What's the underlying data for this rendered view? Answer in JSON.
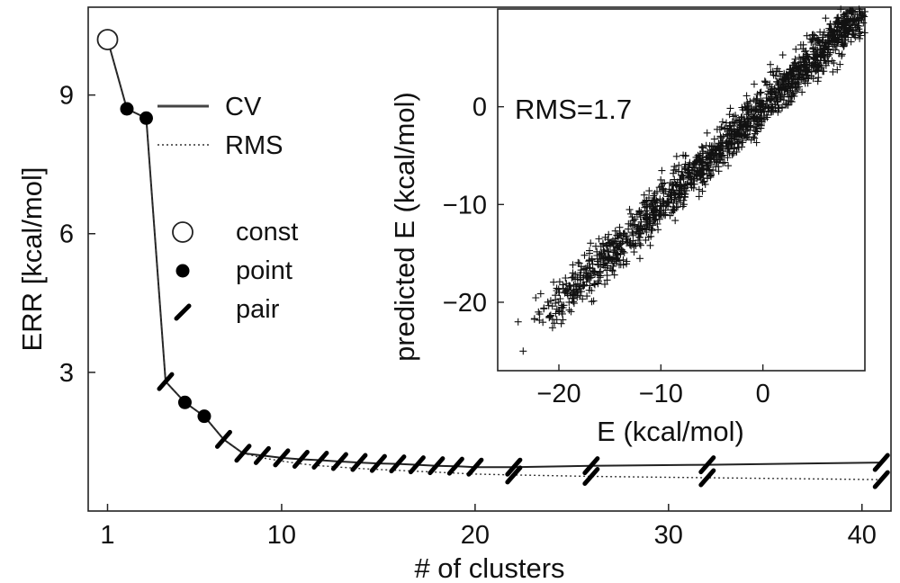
{
  "chart_data": [
    {
      "type": "line",
      "xlabel": "# of clusters",
      "ylabel": "ERR [kcal/mol]",
      "xlim": [
        0,
        41.5
      ],
      "ylim": [
        0,
        10.9
      ],
      "xticks": [
        "1",
        "10",
        "20",
        "30",
        "40"
      ],
      "yticks": [
        "3",
        "6",
        "9"
      ],
      "legend": {
        "lines": [
          {
            "label": "CV",
            "style": "solid"
          },
          {
            "label": "RMS",
            "style": "dotted"
          }
        ],
        "markers": [
          {
            "label": "const",
            "marker": "open-circle"
          },
          {
            "label": "point",
            "marker": "filled-circle"
          },
          {
            "label": "pair",
            "marker": "slash"
          }
        ]
      },
      "series": [
        {
          "name": "CV",
          "style": "solid",
          "x": [
            1,
            2,
            3,
            4,
            5,
            6,
            7,
            8,
            9,
            10,
            11,
            12,
            13,
            14,
            15,
            16,
            17,
            18,
            19,
            20,
            22,
            26,
            32,
            41
          ],
          "y": [
            10.2,
            8.7,
            8.5,
            2.8,
            2.35,
            2.05,
            1.55,
            1.25,
            1.2,
            1.15,
            1.12,
            1.1,
            1.07,
            1.05,
            1.03,
            1.02,
            1.0,
            0.98,
            0.97,
            0.95,
            0.95,
            0.98,
            1.0,
            1.05
          ]
        },
        {
          "name": "RMS",
          "style": "dotted",
          "x": [
            1,
            2,
            3,
            4,
            5,
            6,
            7,
            8,
            9,
            10,
            11,
            12,
            13,
            14,
            15,
            16,
            17,
            18,
            19,
            20,
            22,
            26,
            32,
            41
          ],
          "y": [
            10.2,
            8.7,
            8.5,
            2.8,
            2.35,
            2.05,
            1.55,
            1.25,
            1.15,
            1.08,
            1.02,
            0.98,
            0.95,
            0.92,
            0.9,
            0.88,
            0.86,
            0.84,
            0.82,
            0.8,
            0.78,
            0.75,
            0.72,
            0.68
          ]
        }
      ],
      "markers": [
        {
          "x": 1,
          "y": 10.2,
          "type": "open-circle"
        },
        {
          "x": 2,
          "y": 8.7,
          "type": "filled-circle"
        },
        {
          "x": 3,
          "y": 8.5,
          "type": "filled-circle"
        },
        {
          "x": 4,
          "y": 2.8,
          "type": "slash"
        },
        {
          "x": 5,
          "y": 2.35,
          "type": "filled-circle"
        },
        {
          "x": 6,
          "y": 2.05,
          "type": "filled-circle"
        },
        {
          "x": 7,
          "y": 1.55,
          "type": "slash"
        },
        {
          "x": 8,
          "y": 1.25,
          "type": "slash"
        },
        {
          "x": 9,
          "y": 1.2,
          "type": "slash"
        },
        {
          "x": 10,
          "y": 1.15,
          "type": "slash"
        },
        {
          "x": 11,
          "y": 1.12,
          "type": "slash"
        },
        {
          "x": 12,
          "y": 1.1,
          "type": "slash"
        },
        {
          "x": 13,
          "y": 1.07,
          "type": "slash"
        },
        {
          "x": 14,
          "y": 1.05,
          "type": "slash"
        },
        {
          "x": 15,
          "y": 1.03,
          "type": "slash"
        },
        {
          "x": 16,
          "y": 1.02,
          "type": "slash"
        },
        {
          "x": 17,
          "y": 1.0,
          "type": "slash"
        },
        {
          "x": 18,
          "y": 0.98,
          "type": "slash"
        },
        {
          "x": 19,
          "y": 0.97,
          "type": "slash"
        },
        {
          "x": 20,
          "y": 0.95,
          "type": "slash"
        },
        {
          "x": 22,
          "y": 0.95,
          "type": "slash"
        },
        {
          "x": 22,
          "y": 0.78,
          "type": "slash"
        },
        {
          "x": 26,
          "y": 0.98,
          "type": "slash"
        },
        {
          "x": 26,
          "y": 0.75,
          "type": "slash"
        },
        {
          "x": 32,
          "y": 1.0,
          "type": "slash"
        },
        {
          "x": 32,
          "y": 0.72,
          "type": "slash"
        },
        {
          "x": 41,
          "y": 1.05,
          "type": "slash"
        },
        {
          "x": 41,
          "y": 0.68,
          "type": "slash"
        }
      ]
    },
    {
      "type": "scatter",
      "xlabel": "E (kcal/mol)",
      "ylabel": "predicted E (kcal/mol)",
      "xlim": [
        -26,
        10
      ],
      "ylim": [
        -27,
        10
      ],
      "xticks": [
        "−20",
        "−10",
        "0"
      ],
      "yticks": [
        "0",
        "−10",
        "−20"
      ],
      "annotation": "RMS=1.7",
      "marker": "plus",
      "sample_points": {
        "x": [
          -24,
          -23.5,
          -22,
          -20,
          -19,
          -18,
          -17,
          -16,
          -15,
          -14,
          -13,
          -12,
          -11,
          -10,
          -9,
          -8,
          -7,
          -6,
          -5,
          -4,
          -3,
          -2,
          -1,
          0,
          1,
          2,
          3,
          4,
          5,
          6,
          7,
          8,
          9
        ],
        "y": [
          -22,
          -25,
          -21,
          -19,
          -20,
          -16,
          -15,
          -17,
          -14,
          -13,
          -12,
          -13,
          -10,
          -11,
          -9,
          -7,
          -8,
          -6,
          -4,
          -5,
          -3,
          -2,
          -1,
          0,
          -0.5,
          2,
          3,
          3,
          5,
          6,
          7,
          8,
          9
        ]
      }
    }
  ]
}
